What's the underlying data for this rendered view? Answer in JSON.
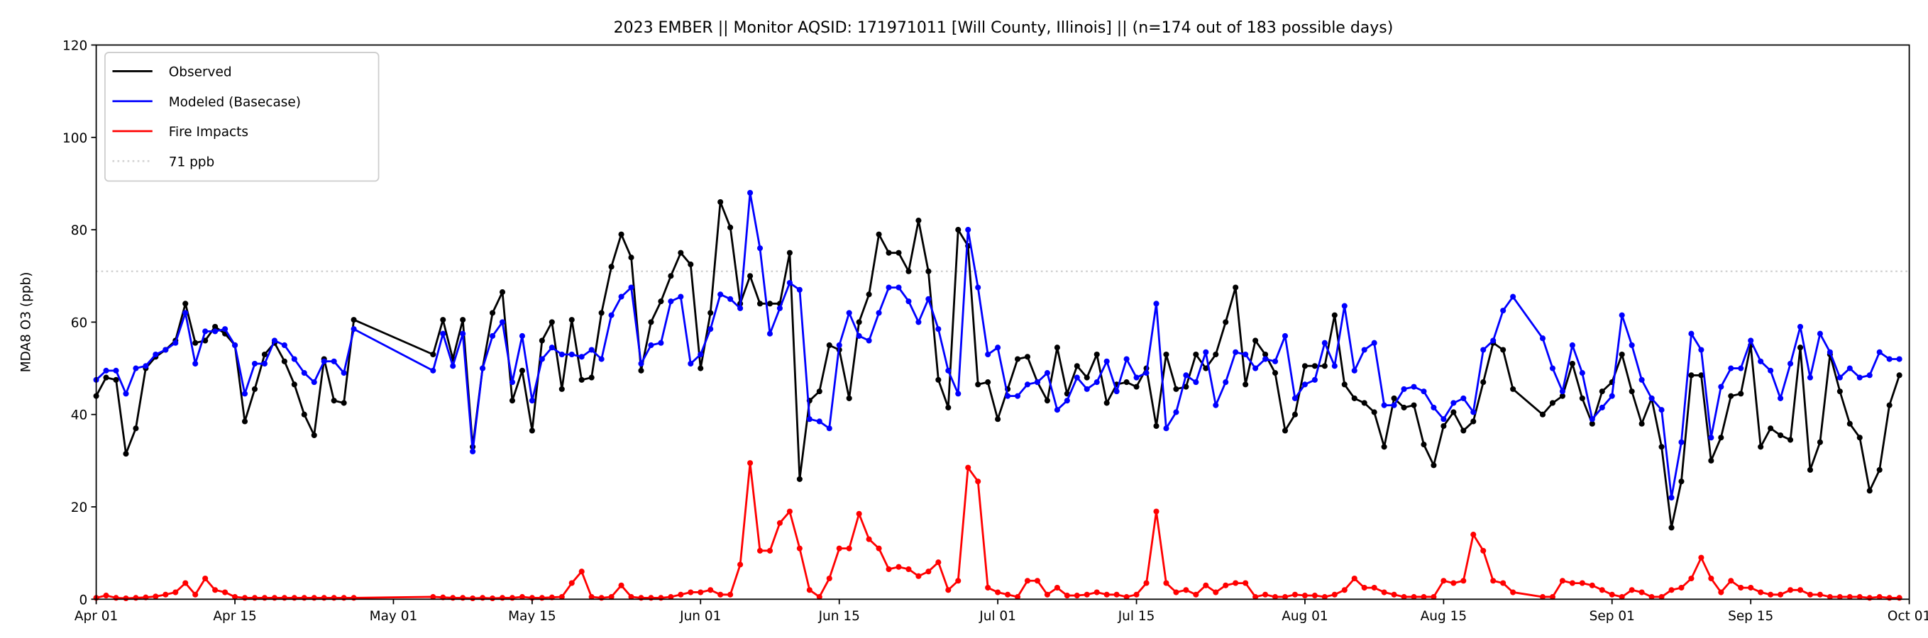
{
  "chart_data": {
    "type": "line",
    "title": "2023 EMBER || Monitor AQSID: 171971011 [Will County, Illinois] || (n=174 out of 183 possible days)",
    "xlabel": "",
    "ylabel": "MDA8 O3 (ppb)",
    "ylim": [
      0,
      120
    ],
    "yticks": [
      0,
      20,
      40,
      60,
      80,
      100,
      120
    ],
    "x_start_date": "2023-04-01",
    "x_days": 183,
    "xticks": [
      {
        "day": 0,
        "label": "Apr 01"
      },
      {
        "day": 14,
        "label": "Apr 15"
      },
      {
        "day": 30,
        "label": "May 01"
      },
      {
        "day": 44,
        "label": "May 15"
      },
      {
        "day": 61,
        "label": "Jun 01"
      },
      {
        "day": 75,
        "label": "Jun 15"
      },
      {
        "day": 91,
        "label": "Jul 01"
      },
      {
        "day": 105,
        "label": "Jul 15"
      },
      {
        "day": 122,
        "label": "Aug 01"
      },
      {
        "day": 136,
        "label": "Aug 15"
      },
      {
        "day": 153,
        "label": "Sep 01"
      },
      {
        "day": 167,
        "label": "Sep 15"
      },
      {
        "day": 183,
        "label": "Oct 01"
      }
    ],
    "grid": false,
    "legend_position": "top-left",
    "threshold": {
      "value": 71,
      "label": "71 ppb",
      "color": "#d3d3d3"
    },
    "series": [
      {
        "name": "Observed",
        "color": "#000000",
        "values": [
          44,
          48,
          47.5,
          31.5,
          37,
          50,
          52.5,
          54,
          56,
          64,
          55.5,
          56,
          59,
          57.5,
          55,
          38.5,
          45.5,
          53,
          55.5,
          51.5,
          46.5,
          40,
          35.5,
          52,
          43,
          42.5,
          60.5,
          null,
          null,
          null,
          null,
          null,
          null,
          null,
          53,
          60.5,
          52,
          60.5,
          33,
          50,
          62,
          66.5,
          43,
          49.5,
          36.5,
          56,
          60,
          45.5,
          60.5,
          47.5,
          48,
          62,
          72,
          79,
          74,
          49.5,
          60,
          64.5,
          70,
          75,
          72.5,
          50,
          62,
          86,
          80.5,
          64,
          70,
          64,
          64,
          64,
          75,
          26,
          43,
          45,
          55,
          54,
          43.5,
          60,
          66,
          79,
          75,
          75,
          71,
          82,
          71,
          47.5,
          41.5,
          80,
          76.5,
          46.5,
          47,
          39,
          45.5,
          52,
          52.5,
          47,
          43,
          54.5,
          44.5,
          50.5,
          48,
          53,
          42.5,
          46.5,
          47,
          46,
          50,
          37.5,
          53,
          45.5,
          46,
          53,
          50,
          53,
          60,
          67.5,
          46.5,
          56,
          53,
          49,
          36.5,
          40,
          50.5,
          50.5,
          50.5,
          61.5,
          46.5,
          43.5,
          42.5,
          40.5,
          33,
          43.5,
          41.5,
          42,
          33.5,
          29,
          37.5,
          40.5,
          36.5,
          38.5,
          47,
          55.5,
          54,
          45.5,
          null,
          null,
          40,
          42.5,
          44,
          51,
          43.5,
          38,
          45,
          47,
          53,
          45,
          38,
          43.5,
          33,
          15.5,
          25.5,
          48.5,
          48.5,
          30,
          35,
          44,
          44.5,
          55,
          33,
          37,
          35.5,
          34.5,
          54.5,
          28,
          34,
          53,
          45,
          38,
          35,
          23.5,
          28,
          42,
          48.5
        ]
      },
      {
        "name": "Modeled (Basecase)",
        "color": "#0000ff",
        "values": [
          47.5,
          49.5,
          49.5,
          44.5,
          50,
          50.5,
          53,
          54,
          55.5,
          62,
          51,
          58,
          58,
          58.5,
          55,
          44.5,
          51,
          51,
          56,
          55,
          52,
          49,
          47,
          51.5,
          51.5,
          49,
          58.5,
          null,
          null,
          null,
          null,
          null,
          null,
          null,
          49.5,
          57.5,
          50.5,
          57.5,
          32,
          50,
          57,
          60,
          47,
          57,
          43,
          52,
          54.5,
          53,
          53,
          52.5,
          54,
          52,
          61.5,
          65.5,
          67.5,
          51,
          55,
          55.5,
          64.5,
          65.5,
          51,
          53,
          58.5,
          66,
          65,
          63,
          88,
          76,
          57.5,
          63,
          68.5,
          67,
          39,
          38.5,
          37,
          55,
          62,
          57,
          56,
          62,
          67.5,
          67.5,
          64.5,
          60,
          65,
          58.5,
          49.5,
          44.5,
          80,
          67.5,
          53,
          54.5,
          44,
          44,
          46.5,
          47,
          49,
          41,
          43,
          48,
          45.5,
          47,
          51.5,
          45,
          52,
          48,
          49,
          64,
          37,
          40.5,
          48.5,
          47,
          53.5,
          42,
          47,
          53.5,
          53,
          50,
          52,
          51.5,
          57,
          43.5,
          46.5,
          47.5,
          55.5,
          50.5,
          63.5,
          49.5,
          54,
          55.5,
          42,
          42,
          45.5,
          46,
          45,
          41.5,
          39,
          42.5,
          43.5,
          40.5,
          54,
          56,
          62.5,
          65.5,
          null,
          null,
          56.5,
          50,
          45,
          55,
          49,
          39,
          41.5,
          44,
          61.5,
          55,
          47.5,
          43.5,
          41,
          22,
          34,
          57.5,
          54,
          35,
          46,
          50,
          50,
          56,
          51.5,
          49.5,
          43.5,
          51,
          59,
          48,
          57.5,
          53.5,
          48,
          50,
          48,
          48.5,
          53.5,
          52,
          52
        ]
      },
      {
        "name": "Fire Impacts",
        "color": "#ff0000",
        "values": [
          0.3,
          0.8,
          0.3,
          0.2,
          0.3,
          0.4,
          0.6,
          1,
          1.5,
          3.5,
          1,
          4.5,
          2,
          1.5,
          0.5,
          0.3,
          0.3,
          0.3,
          0.3,
          0.3,
          0.3,
          0.3,
          0.3,
          0.3,
          0.3,
          0.3,
          0.3,
          null,
          null,
          null,
          null,
          null,
          null,
          null,
          0.5,
          0.4,
          0.3,
          0.3,
          0.2,
          0.3,
          0.2,
          0.3,
          0.3,
          0.5,
          0.3,
          0.3,
          0.4,
          0.5,
          3.5,
          6,
          0.5,
          0.3,
          0.5,
          3,
          0.5,
          0.3,
          0.3,
          0.3,
          0.5,
          1,
          1.5,
          1.5,
          2,
          1,
          1,
          7.5,
          29.5,
          10.5,
          10.5,
          16.5,
          19,
          11,
          2,
          0.5,
          4.5,
          11,
          11,
          18.5,
          13,
          11,
          6.5,
          7,
          6.5,
          5,
          6,
          8,
          2,
          4,
          28.5,
          25.5,
          2.5,
          1.5,
          1,
          0.5,
          4,
          4,
          1,
          2.5,
          0.8,
          0.8,
          1,
          1.5,
          1,
          1,
          0.5,
          1,
          3.5,
          19,
          3.5,
          1.5,
          2,
          1,
          3,
          1.5,
          3,
          3.5,
          3.5,
          0.5,
          1,
          0.5,
          0.5,
          1,
          0.8,
          0.8,
          0.5,
          1,
          2,
          4.5,
          2.5,
          2.5,
          1.5,
          1,
          0.5,
          0.5,
          0.5,
          0.5,
          4,
          3.5,
          4,
          14,
          10.5,
          4,
          3.5,
          1.5,
          null,
          null,
          0.5,
          0.5,
          4,
          3.5,
          3.5,
          3,
          2,
          1,
          0.5,
          2,
          1.5,
          0.5,
          0.5,
          2,
          2.5,
          4.5,
          9,
          4.5,
          1.5,
          4,
          2.5,
          2.5,
          1.5,
          1,
          1,
          2,
          2,
          1,
          1,
          0.5,
          0.5,
          0.5,
          0.5,
          0.3,
          0.5,
          0.3,
          0.3
        ]
      }
    ]
  }
}
